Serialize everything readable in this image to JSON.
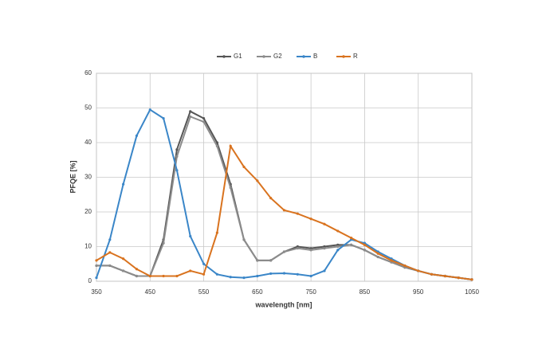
{
  "chart_data": {
    "type": "line",
    "x_label": "wavelength [nm]",
    "y_label": "PFQE [%]",
    "x": [
      350,
      375,
      400,
      425,
      450,
      475,
      500,
      525,
      550,
      575,
      600,
      625,
      650,
      675,
      700,
      725,
      750,
      775,
      800,
      825,
      850,
      875,
      900,
      925,
      950,
      975,
      1000,
      1025,
      1050
    ],
    "series": [
      {
        "name": "G1",
        "color": "#555555",
        "values": [
          4.5,
          4.5,
          3,
          1.5,
          1.5,
          12,
          38,
          49,
          47,
          40,
          28,
          12,
          6,
          6,
          8.5,
          10,
          9.5,
          10,
          10.5,
          10.5,
          9,
          7,
          5.5,
          4,
          3,
          2,
          1.5,
          1,
          0.5
        ]
      },
      {
        "name": "G2",
        "color": "#8c8c8c",
        "values": [
          4.5,
          4.5,
          3,
          1.5,
          1.5,
          11,
          36,
          47.5,
          46,
          39,
          27,
          12,
          6,
          6,
          8.5,
          9.5,
          9,
          9.5,
          10,
          10.5,
          9,
          7,
          5.5,
          4,
          3,
          2,
          1.5,
          1,
          0.5
        ]
      },
      {
        "name": "B",
        "color": "#3a86c8",
        "values": [
          1,
          12,
          28,
          42,
          49.5,
          47,
          32,
          13,
          5,
          2,
          1.2,
          1,
          1.5,
          2.2,
          2.3,
          2,
          1.5,
          3,
          9,
          12,
          11,
          8.5,
          6.5,
          4.5,
          3,
          2,
          1.5,
          1,
          0.5
        ]
      },
      {
        "name": "R",
        "color": "#d9731f",
        "values": [
          6,
          8.3,
          6.5,
          3.5,
          1.5,
          1.5,
          1.5,
          3,
          2,
          14,
          39,
          33,
          29,
          24,
          20.5,
          19.5,
          18,
          16.5,
          14.5,
          12.5,
          10.5,
          8,
          6,
          4.5,
          3,
          2,
          1.5,
          1,
          0.5
        ]
      }
    ],
    "xlim": [
      350,
      1050
    ],
    "xticks": [
      350,
      450,
      550,
      650,
      750,
      850,
      950,
      1050
    ],
    "ylim": [
      0,
      60
    ],
    "yticks": [
      0,
      10,
      20,
      30,
      40,
      50,
      60
    ],
    "grid": true,
    "legend": "top"
  }
}
